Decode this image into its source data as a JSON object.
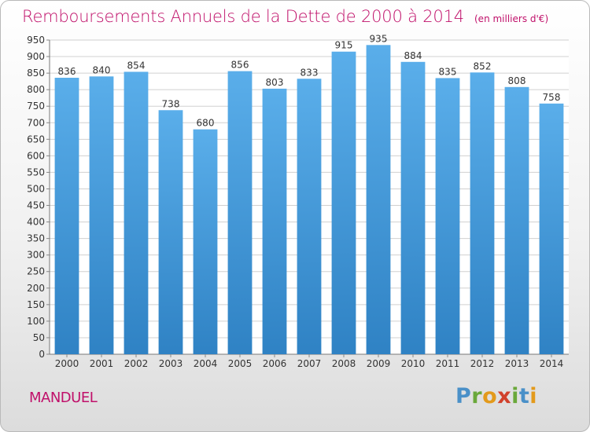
{
  "header": {
    "title": "Remboursements Annuels de la Dette de 2000 à 2014",
    "subtitle": "(en milliers d'€)"
  },
  "footer": {
    "commune": "MANDUEL",
    "logo_letters": [
      "P",
      "r",
      "o",
      "x",
      "i",
      "t",
      "i"
    ]
  },
  "colors": {
    "accent": "#c0106a",
    "bar_light": "#5aaeea",
    "bar_dark": "#2f82c4",
    "grid": "#d0d0d0"
  },
  "chart_data": {
    "type": "bar",
    "categories": [
      "2000",
      "2001",
      "2002",
      "2003",
      "2004",
      "2005",
      "2006",
      "2007",
      "2008",
      "2009",
      "2010",
      "2011",
      "2012",
      "2013",
      "2014"
    ],
    "values": [
      836,
      840,
      854,
      738,
      680,
      856,
      803,
      833,
      915,
      935,
      884,
      835,
      852,
      808,
      758
    ],
    "title": "Remboursements Annuels de la Dette de 2000 à 2014",
    "xlabel": "",
    "ylabel": "",
    "ylim": [
      0,
      950
    ],
    "ytick_step": 50,
    "grid": true,
    "data_labels": true
  }
}
